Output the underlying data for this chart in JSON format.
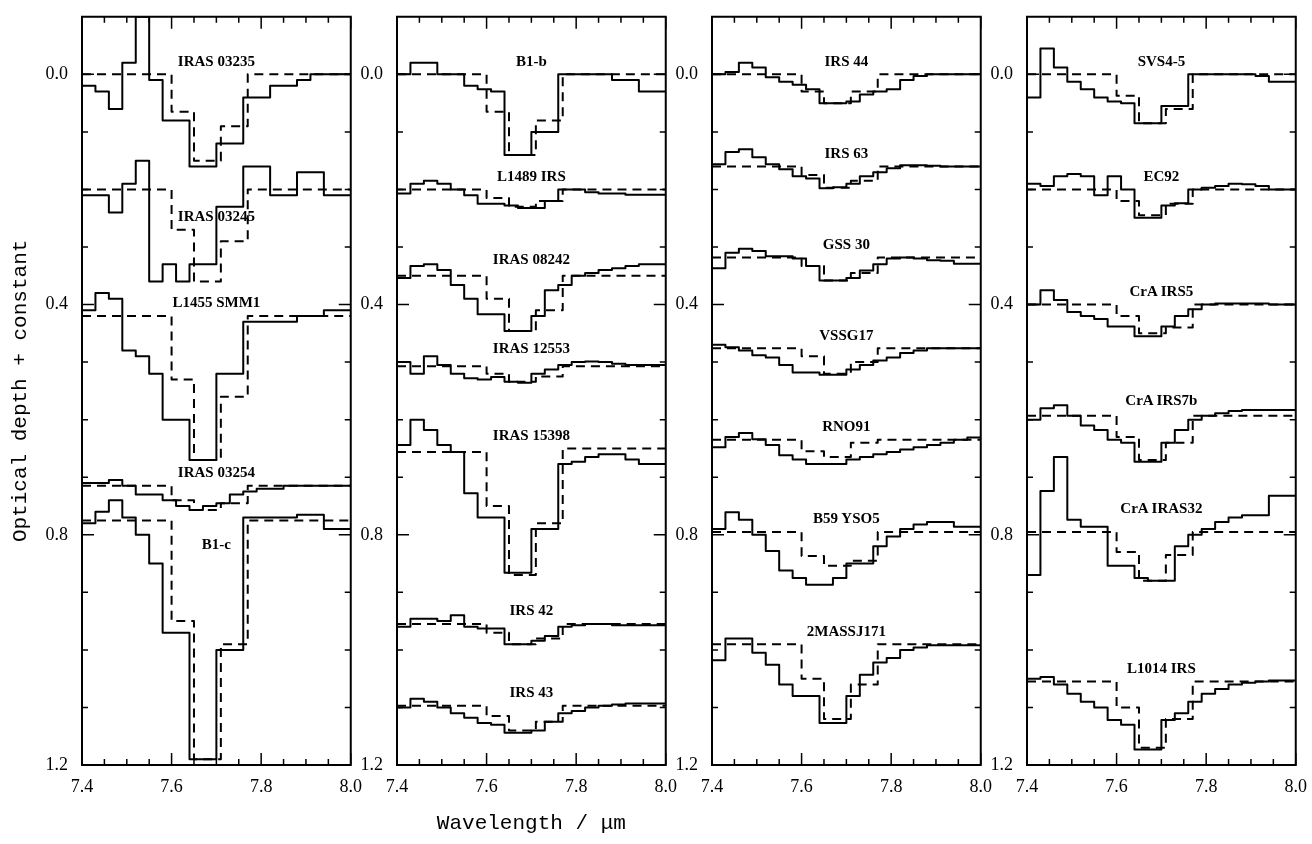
{
  "chart_data": [
    {
      "type": "step",
      "ylabel": "Optical depth + constant",
      "xlim": [
        7.4,
        8.0
      ],
      "ylim": [
        1.2,
        -0.1
      ],
      "xticks": [
        7.4,
        {
          "value": 7.45,
          "label": null
        },
        {
          "value": 7.5,
          "label": null
        },
        {
          "value": 7.55,
          "label": null
        },
        7.6,
        {
          "value": 7.65,
          "label": null
        },
        {
          "value": 7.7,
          "label": null
        },
        {
          "value": 7.75,
          "label": null
        },
        7.8,
        {
          "value": 7.85,
          "label": null
        },
        {
          "value": 7.9,
          "label": null
        },
        {
          "value": 7.95,
          "label": null
        },
        {
          "value": 8.0,
          "label": "8.0"
        }
      ],
      "yticks": [
        {
          "value": 0,
          "label": "0.0"
        },
        {
          "value": 0.1,
          "label": null
        },
        {
          "value": 0.2,
          "label": null
        },
        {
          "value": 0.3,
          "label": null
        },
        0.4,
        {
          "value": 0.5,
          "label": null
        },
        {
          "value": 0.6,
          "label": null
        },
        {
          "value": 0.7,
          "label": null
        },
        0.8,
        {
          "value": 0.9,
          "label": null
        },
        {
          "value": 1.0,
          "label": null
        },
        {
          "value": 1.1,
          "label": null
        },
        1.2
      ],
      "x": [
        7.4,
        7.43,
        7.46,
        7.49,
        7.52,
        7.55,
        7.58,
        7.61,
        7.64,
        7.67,
        7.7,
        7.73,
        7.76,
        7.79,
        7.82,
        7.85,
        7.88,
        7.91,
        7.94,
        7.97,
        8.0
      ],
      "series": [
        {
          "name": "IRAS 03235",
          "color": "#000000",
          "values": [
            0.02,
            0.03,
            0.06,
            -0.02,
            -0.1,
            0.01,
            0.08,
            0.08,
            0.16,
            0.16,
            0.12,
            0.12,
            0.04,
            0.04,
            0.02,
            0.02,
            0.01,
            0.0,
            0.0,
            0.0,
            0.0
          ]
        },
        {
          "color": "#000000",
          "line_style": "dashed",
          "x": [
            7.4,
            7.6,
            7.65,
            7.71,
            7.77,
            8.0
          ],
          "values": [
            0.0,
            0.065,
            0.15,
            0.09,
            0.0,
            0.0
          ]
        },
        {
          "name": "IRAS 03245",
          "color": "#000000",
          "values": [
            0.21,
            0.21,
            0.24,
            0.19,
            0.15,
            0.36,
            0.33,
            0.36,
            0.33,
            0.33,
            0.23,
            0.23,
            0.16,
            0.16,
            0.21,
            0.21,
            0.17,
            0.17,
            0.21,
            0.21,
            0.21
          ]
        },
        {
          "color": "#000000",
          "line_style": "dashed",
          "x": [
            7.4,
            7.6,
            7.65,
            7.71,
            7.77,
            8.0
          ],
          "values": [
            0.2,
            0.27,
            0.36,
            0.29,
            0.2,
            0.2
          ]
        },
        {
          "name": "L1455 SMM1",
          "color": "#000000",
          "values": [
            0.41,
            0.38,
            0.39,
            0.48,
            0.49,
            0.52,
            0.6,
            0.6,
            0.67,
            0.67,
            0.52,
            0.52,
            0.43,
            0.43,
            0.43,
            0.43,
            0.42,
            0.42,
            0.41,
            0.41,
            0.41
          ]
        },
        {
          "color": "#000000",
          "line_style": "dashed",
          "x": [
            7.4,
            7.6,
            7.65,
            7.71,
            7.77,
            8.0
          ],
          "values": [
            0.42,
            0.53,
            0.67,
            0.56,
            0.42,
            0.42
          ]
        },
        {
          "name": "IRAS 03254",
          "color": "#000000",
          "values": [
            0.71,
            0.71,
            0.705,
            0.715,
            0.73,
            0.73,
            0.74,
            0.75,
            0.757,
            0.75,
            0.745,
            0.73,
            0.725,
            0.72,
            0.72,
            0.715,
            0.715,
            0.715,
            0.715,
            0.715,
            0.715
          ]
        },
        {
          "color": "#000000",
          "line_style": "dashed",
          "x": [
            7.4,
            7.6,
            7.65,
            7.71,
            7.77,
            8.0
          ],
          "values": [
            0.715,
            0.74,
            0.757,
            0.745,
            0.715,
            0.715
          ]
        },
        {
          "name": "B1-c",
          "color": "#000000",
          "values": [
            0.78,
            0.76,
            0.74,
            0.77,
            0.8,
            0.85,
            0.97,
            0.97,
            1.19,
            1.19,
            1.0,
            1.0,
            0.77,
            0.77,
            0.77,
            0.77,
            0.765,
            0.765,
            0.79,
            0.79,
            0.79
          ]
        },
        {
          "color": "#000000",
          "line_style": "dashed",
          "x": [
            7.4,
            7.6,
            7.65,
            7.71,
            7.77,
            8.0
          ],
          "values": [
            0.775,
            0.95,
            1.19,
            0.99,
            0.775,
            0.775
          ]
        }
      ]
    },
    {
      "type": "step",
      "xlabel": "Wavelength / μm",
      "xlim": [
        7.4,
        8.0
      ],
      "ylim": [
        1.2,
        -0.1
      ],
      "xticks": [
        7.4,
        {
          "value": 7.45,
          "label": null
        },
        {
          "value": 7.5,
          "label": null
        },
        {
          "value": 7.55,
          "label": null
        },
        7.6,
        {
          "value": 7.65,
          "label": null
        },
        {
          "value": 7.7,
          "label": null
        },
        {
          "value": 7.75,
          "label": null
        },
        7.8,
        {
          "value": 7.85,
          "label": null
        },
        {
          "value": 7.9,
          "label": null
        },
        {
          "value": 7.95,
          "label": null
        },
        {
          "value": 8.0,
          "label": "8.0"
        }
      ],
      "yticks": [
        {
          "value": 0,
          "label": "0.0"
        },
        {
          "value": 0.1,
          "label": null
        },
        {
          "value": 0.2,
          "label": null
        },
        {
          "value": 0.3,
          "label": null
        },
        0.4,
        {
          "value": 0.5,
          "label": null
        },
        {
          "value": 0.6,
          "label": null
        },
        {
          "value": 0.7,
          "label": null
        },
        0.8,
        {
          "value": 0.9,
          "label": null
        },
        {
          "value": 1.0,
          "label": null
        },
        {
          "value": 1.1,
          "label": null
        },
        1.2
      ],
      "x": [
        7.4,
        7.43,
        7.46,
        7.49,
        7.52,
        7.55,
        7.58,
        7.61,
        7.64,
        7.67,
        7.7,
        7.73,
        7.76,
        7.79,
        7.82,
        7.85,
        7.88,
        7.91,
        7.94,
        7.97,
        8.0
      ],
      "series": [
        {
          "name": "B1-b",
          "color": "#000000",
          "values": [
            0.0,
            -0.02,
            -0.02,
            0.0,
            0.0,
            0.02,
            0.026,
            0.03,
            0.14,
            0.14,
            0.1,
            0.1,
            0.0,
            0.0,
            0.0,
            0.0,
            0.01,
            0.01,
            0.03,
            0.03,
            0.03
          ]
        },
        {
          "color": "#000000",
          "line_style": "dashed",
          "x": [
            7.4,
            7.6,
            7.65,
            7.71,
            7.77,
            8.0
          ],
          "values": [
            0.0,
            0.065,
            0.14,
            0.08,
            0.0,
            0.0
          ]
        },
        {
          "name": "L1489 IRS",
          "color": "#000000",
          "values": [
            0.207,
            0.19,
            0.185,
            0.19,
            0.2,
            0.21,
            0.225,
            0.225,
            0.228,
            0.232,
            0.232,
            0.22,
            0.2,
            0.2,
            0.205,
            0.207,
            0.207,
            0.209,
            0.209,
            0.209,
            0.209
          ]
        },
        {
          "color": "#000000",
          "line_style": "dashed",
          "x": [
            7.4,
            7.6,
            7.65,
            7.71,
            7.77,
            8.0
          ],
          "values": [
            0.2,
            0.215,
            0.23,
            0.22,
            0.2,
            0.2
          ]
        },
        {
          "name": "IRAS 08242",
          "color": "#000000",
          "values": [
            0.354,
            0.333,
            0.33,
            0.34,
            0.366,
            0.39,
            0.417,
            0.417,
            0.446,
            0.446,
            0.42,
            0.375,
            0.366,
            0.35,
            0.345,
            0.34,
            0.337,
            0.333,
            0.33,
            0.33,
            0.33
          ]
        },
        {
          "color": "#000000",
          "line_style": "dashed",
          "x": [
            7.4,
            7.6,
            7.65,
            7.71,
            7.77,
            8.0
          ],
          "values": [
            0.35,
            0.39,
            0.446,
            0.41,
            0.35,
            0.35
          ]
        },
        {
          "name": "IRAS 12553",
          "color": "#000000",
          "values": [
            0.5,
            0.52,
            0.49,
            0.505,
            0.52,
            0.528,
            0.53,
            0.526,
            0.534,
            0.536,
            0.52,
            0.513,
            0.505,
            0.5,
            0.499,
            0.5,
            0.503,
            0.505,
            0.505,
            0.505,
            0.505
          ]
        },
        {
          "color": "#000000",
          "line_style": "dashed",
          "x": [
            7.4,
            7.6,
            7.65,
            7.71,
            7.77,
            8.0
          ],
          "values": [
            0.507,
            0.52,
            0.534,
            0.525,
            0.507,
            0.507
          ]
        },
        {
          "name": "IRAS 15398",
          "color": "#000000",
          "values": [
            0.644,
            0.6,
            0.618,
            0.644,
            0.656,
            0.728,
            0.77,
            0.77,
            0.866,
            0.866,
            0.79,
            0.79,
            0.677,
            0.673,
            0.665,
            0.66,
            0.66,
            0.669,
            0.677,
            0.677,
            0.677
          ]
        },
        {
          "color": "#000000",
          "line_style": "dashed",
          "x": [
            7.4,
            7.6,
            7.65,
            7.71,
            7.77,
            8.0
          ],
          "values": [
            0.656,
            0.75,
            0.87,
            0.78,
            0.65,
            0.65
          ]
        },
        {
          "name": "IRS 42",
          "color": "#000000",
          "values": [
            0.96,
            0.946,
            0.946,
            0.95,
            0.94,
            0.96,
            0.963,
            0.963,
            0.99,
            0.99,
            0.984,
            0.976,
            0.96,
            0.957,
            0.955,
            0.955,
            0.957,
            0.957,
            0.957,
            0.957,
            0.957
          ]
        },
        {
          "color": "#000000",
          "line_style": "dashed",
          "x": [
            7.4,
            7.6,
            7.65,
            7.71,
            7.77,
            8.0
          ],
          "values": [
            0.955,
            0.97,
            0.99,
            0.98,
            0.955,
            0.955
          ]
        },
        {
          "name": "IRS 43",
          "color": "#000000",
          "values": [
            1.1,
            1.085,
            1.09,
            1.1,
            1.11,
            1.118,
            1.127,
            1.13,
            1.144,
            1.144,
            1.14,
            1.125,
            1.11,
            1.106,
            1.1,
            1.097,
            1.095,
            1.093,
            1.093,
            1.093,
            1.093
          ]
        },
        {
          "color": "#000000",
          "line_style": "dashed",
          "x": [
            7.4,
            7.6,
            7.65,
            7.71,
            7.77,
            8.0
          ],
          "values": [
            1.097,
            1.115,
            1.14,
            1.125,
            1.097,
            1.097
          ]
        }
      ]
    },
    {
      "type": "step",
      "xlim": [
        7.4,
        8.0
      ],
      "ylim": [
        1.2,
        -0.1
      ],
      "xticks": [
        7.4,
        {
          "value": 7.45,
          "label": null
        },
        {
          "value": 7.5,
          "label": null
        },
        {
          "value": 7.55,
          "label": null
        },
        7.6,
        {
          "value": 7.65,
          "label": null
        },
        {
          "value": 7.7,
          "label": null
        },
        {
          "value": 7.75,
          "label": null
        },
        7.8,
        {
          "value": 7.85,
          "label": null
        },
        {
          "value": 7.9,
          "label": null
        },
        {
          "value": 7.95,
          "label": null
        },
        {
          "value": 8.0,
          "label": "8.0"
        }
      ],
      "yticks": [
        {
          "value": 0,
          "label": "0.0"
        },
        {
          "value": 0.1,
          "label": null
        },
        {
          "value": 0.2,
          "label": null
        },
        {
          "value": 0.3,
          "label": null
        },
        0.4,
        {
          "value": 0.5,
          "label": null
        },
        {
          "value": 0.6,
          "label": null
        },
        {
          "value": 0.7,
          "label": null
        },
        0.8,
        {
          "value": 0.9,
          "label": null
        },
        {
          "value": 1.0,
          "label": null
        },
        {
          "value": 1.1,
          "label": null
        },
        1.2
      ],
      "x": [
        7.4,
        7.43,
        7.46,
        7.49,
        7.52,
        7.55,
        7.58,
        7.61,
        7.64,
        7.67,
        7.7,
        7.73,
        7.76,
        7.79,
        7.82,
        7.85,
        7.88,
        7.91,
        7.94,
        7.97,
        8.0
      ],
      "series": [
        {
          "name": "IRS 44",
          "color": "#000000",
          "values": [
            0.0,
            -0.004,
            -0.02,
            -0.012,
            0.005,
            0.013,
            0.018,
            0.026,
            0.05,
            0.05,
            0.047,
            0.035,
            0.03,
            0.026,
            0.01,
            0.003,
            0.0,
            0.0,
            0.0,
            0.0,
            0.0
          ]
        },
        {
          "color": "#000000",
          "line_style": "dashed",
          "x": [
            7.4,
            7.6,
            7.65,
            7.71,
            7.77,
            8.0
          ],
          "values": [
            0.0,
            0.03,
            0.05,
            0.03,
            0.0,
            0.0
          ]
        },
        {
          "name": "IRS 63",
          "color": "#000000",
          "values": [
            0.156,
            0.135,
            0.13,
            0.144,
            0.156,
            0.165,
            0.177,
            0.181,
            0.198,
            0.196,
            0.19,
            0.177,
            0.17,
            0.163,
            0.158,
            0.158,
            0.159,
            0.16,
            0.16,
            0.16,
            0.16
          ]
        },
        {
          "color": "#000000",
          "line_style": "dashed",
          "x": [
            7.4,
            7.6,
            7.65,
            7.71,
            7.77,
            8.0
          ],
          "values": [
            0.16,
            0.175,
            0.197,
            0.185,
            0.16,
            0.16
          ]
        },
        {
          "name": "GSS 30",
          "color": "#000000",
          "values": [
            0.337,
            0.31,
            0.303,
            0.307,
            0.316,
            0.316,
            0.32,
            0.333,
            0.358,
            0.358,
            0.354,
            0.341,
            0.33,
            0.32,
            0.318,
            0.32,
            0.323,
            0.324,
            0.329,
            0.329,
            0.329
          ]
        },
        {
          "color": "#000000",
          "line_style": "dashed",
          "x": [
            7.4,
            7.6,
            7.65,
            7.71,
            7.77,
            8.0
          ],
          "values": [
            0.318,
            0.333,
            0.358,
            0.345,
            0.318,
            0.318
          ]
        },
        {
          "name": "VSSG17",
          "color": "#000000",
          "values": [
            0.47,
            0.474,
            0.48,
            0.488,
            0.492,
            0.505,
            0.518,
            0.518,
            0.522,
            0.522,
            0.513,
            0.505,
            0.497,
            0.492,
            0.484,
            0.48,
            0.476,
            0.476,
            0.476,
            0.476,
            0.476
          ]
        },
        {
          "color": "#000000",
          "line_style": "dashed",
          "x": [
            7.4,
            7.6,
            7.65,
            7.71,
            7.77,
            8.0
          ],
          "values": [
            0.476,
            0.49,
            0.52,
            0.5,
            0.476,
            0.476
          ]
        },
        {
          "name": "RNO91",
          "color": "#000000",
          "values": [
            0.648,
            0.63,
            0.623,
            0.634,
            0.644,
            0.662,
            0.669,
            0.677,
            0.677,
            0.677,
            0.669,
            0.665,
            0.66,
            0.656,
            0.652,
            0.648,
            0.644,
            0.64,
            0.635,
            0.631,
            0.631
          ]
        },
        {
          "color": "#000000",
          "line_style": "dashed",
          "x": [
            7.4,
            7.6,
            7.65,
            7.71,
            7.77,
            8.0
          ],
          "values": [
            0.635,
            0.655,
            0.665,
            0.64,
            0.635,
            0.635
          ]
        },
        {
          "name": "B59 YSO5",
          "color": "#000000",
          "values": [
            0.79,
            0.761,
            0.774,
            0.8,
            0.828,
            0.862,
            0.875,
            0.887,
            0.887,
            0.875,
            0.85,
            0.85,
            0.82,
            0.803,
            0.79,
            0.782,
            0.778,
            0.778,
            0.786,
            0.786,
            0.786
          ]
        },
        {
          "color": "#000000",
          "line_style": "dashed",
          "x": [
            7.4,
            7.6,
            7.65,
            7.71,
            7.77,
            8.0
          ],
          "values": [
            0.795,
            0.837,
            0.854,
            0.845,
            0.795,
            0.795
          ]
        },
        {
          "name": "2MASSJ171",
          "color": "#000000",
          "values": [
            1.018,
            0.98,
            0.98,
            1.005,
            1.026,
            1.06,
            1.08,
            1.08,
            1.127,
            1.127,
            1.08,
            1.043,
            1.022,
            1.014,
            1.0,
            0.996,
            0.992,
            0.992,
            0.992,
            0.992,
            0.992
          ]
        },
        {
          "color": "#000000",
          "line_style": "dashed",
          "x": [
            7.4,
            7.6,
            7.65,
            7.71,
            7.77,
            8.0
          ],
          "values": [
            0.99,
            1.05,
            1.12,
            1.06,
            0.99,
            0.99
          ]
        }
      ]
    },
    {
      "type": "step",
      "xlim": [
        7.4,
        8.0
      ],
      "ylim": [
        1.2,
        -0.1
      ],
      "xticks": [
        7.4,
        {
          "value": 7.45,
          "label": null
        },
        {
          "value": 7.5,
          "label": null
        },
        {
          "value": 7.55,
          "label": null
        },
        7.6,
        {
          "value": 7.65,
          "label": null
        },
        {
          "value": 7.7,
          "label": null
        },
        {
          "value": 7.75,
          "label": null
        },
        7.8,
        {
          "value": 7.85,
          "label": null
        },
        {
          "value": 7.9,
          "label": null
        },
        {
          "value": 7.95,
          "label": null
        },
        {
          "value": 8.0,
          "label": "8.0"
        }
      ],
      "yticks": [
        {
          "value": 0,
          "label": "0.0"
        },
        {
          "value": 0.1,
          "label": null
        },
        {
          "value": 0.2,
          "label": null
        },
        {
          "value": 0.3,
          "label": null
        },
        0.4,
        {
          "value": 0.5,
          "label": null
        },
        {
          "value": 0.6,
          "label": null
        },
        {
          "value": 0.7,
          "label": null
        },
        0.8,
        {
          "value": 0.9,
          "label": null
        },
        {
          "value": 1.0,
          "label": null
        },
        {
          "value": 1.1,
          "label": null
        },
        1.2
      ],
      "x": [
        7.4,
        7.43,
        7.46,
        7.49,
        7.52,
        7.55,
        7.58,
        7.61,
        7.64,
        7.67,
        7.7,
        7.73,
        7.76,
        7.79,
        7.82,
        7.85,
        7.88,
        7.91,
        7.94,
        7.97,
        8.0
      ],
      "series": [
        {
          "name": "SVS4-5",
          "color": "#000000",
          "values": [
            0.04,
            -0.045,
            -0.012,
            0.013,
            0.026,
            0.04,
            0.047,
            0.05,
            0.085,
            0.085,
            0.055,
            0.055,
            0.0,
            0.0,
            0.0,
            0.0,
            0.0,
            0.003,
            0.013,
            0.013,
            0.013
          ]
        },
        {
          "color": "#000000",
          "line_style": "dashed",
          "x": [
            7.4,
            7.6,
            7.65,
            7.71,
            7.77,
            8.0
          ],
          "values": [
            0.0,
            0.037,
            0.085,
            0.06,
            0.0,
            0.0
          ]
        },
        {
          "name": "EC92",
          "color": "#000000",
          "values": [
            0.19,
            0.194,
            0.177,
            0.173,
            0.177,
            0.21,
            0.177,
            0.2,
            0.249,
            0.249,
            0.228,
            0.224,
            0.2,
            0.197,
            0.194,
            0.19,
            0.191,
            0.194,
            0.2,
            0.2,
            0.2
          ]
        },
        {
          "color": "#000000",
          "line_style": "dashed",
          "x": [
            7.4,
            7.6,
            7.65,
            7.71,
            7.77,
            8.0
          ],
          "values": [
            0.2,
            0.22,
            0.245,
            0.225,
            0.2,
            0.2
          ]
        },
        {
          "name": "CrA IRS5",
          "color": "#000000",
          "values": [
            0.4,
            0.375,
            0.392,
            0.413,
            0.42,
            0.425,
            0.438,
            0.438,
            0.455,
            0.455,
            0.438,
            0.42,
            0.408,
            0.4,
            0.398,
            0.398,
            0.398,
            0.398,
            0.4,
            0.4,
            0.4
          ]
        },
        {
          "color": "#000000",
          "line_style": "dashed",
          "x": [
            7.4,
            7.6,
            7.65,
            7.71,
            7.77,
            8.0
          ],
          "values": [
            0.4,
            0.42,
            0.45,
            0.44,
            0.4,
            0.4
          ]
        },
        {
          "name": "CrA IRS7b",
          "color": "#000000",
          "values": [
            0.6,
            0.58,
            0.575,
            0.593,
            0.61,
            0.618,
            0.635,
            0.64,
            0.673,
            0.673,
            0.64,
            0.618,
            0.6,
            0.593,
            0.589,
            0.585,
            0.583,
            0.583,
            0.583,
            0.583,
            0.583
          ]
        },
        {
          "color": "#000000",
          "line_style": "dashed",
          "x": [
            7.4,
            7.6,
            7.65,
            7.71,
            7.77,
            8.0
          ],
          "values": [
            0.593,
            0.63,
            0.67,
            0.64,
            0.593,
            0.593
          ]
        },
        {
          "name": "CrA IRAS32",
          "color": "#000000",
          "values": [
            0.87,
            0.724,
            0.665,
            0.774,
            0.786,
            0.786,
            0.854,
            0.854,
            0.875,
            0.88,
            0.88,
            0.82,
            0.8,
            0.79,
            0.778,
            0.77,
            0.766,
            0.766,
            0.732,
            0.732,
            0.732
          ]
        },
        {
          "color": "#000000",
          "line_style": "dashed",
          "x": [
            7.4,
            7.6,
            7.65,
            7.71,
            7.77,
            8.0
          ],
          "values": [
            0.795,
            0.83,
            0.88,
            0.835,
            0.795,
            0.795
          ]
        },
        {
          "name": "L1014 IRS",
          "color": "#000000",
          "values": [
            1.05,
            1.047,
            1.06,
            1.076,
            1.09,
            1.1,
            1.122,
            1.13,
            1.173,
            1.173,
            1.122,
            1.11,
            1.09,
            1.076,
            1.068,
            1.06,
            1.057,
            1.055,
            1.053,
            1.053,
            1.053
          ]
        },
        {
          "color": "#000000",
          "line_style": "dashed",
          "x": [
            7.4,
            7.6,
            7.65,
            7.71,
            7.77,
            8.0
          ],
          "values": [
            1.055,
            1.1,
            1.17,
            1.12,
            1.055,
            1.055
          ]
        }
      ]
    }
  ]
}
